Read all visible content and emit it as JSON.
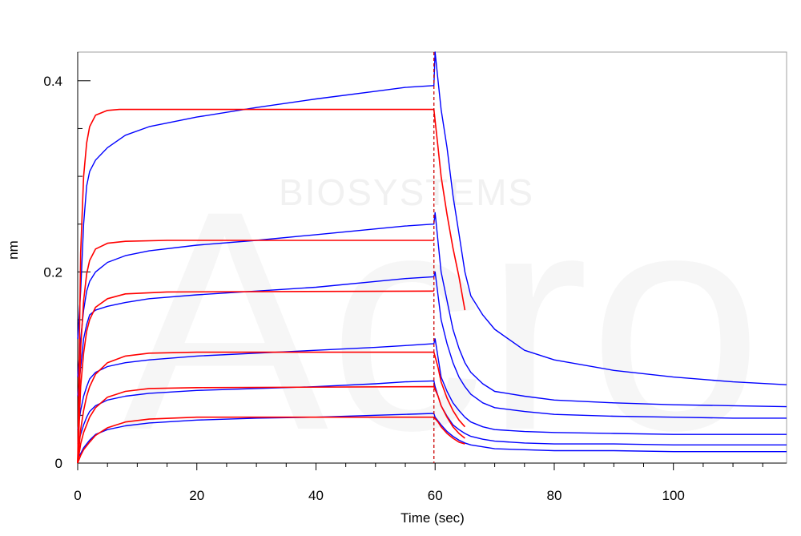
{
  "watermark": {
    "logo_text": "Acro",
    "text": "BIOSYSTEMS"
  },
  "chart_data": {
    "type": "line",
    "title": "",
    "xlabel": "Time (sec)",
    "ylabel": "nm",
    "xlim": [
      0,
      119
    ],
    "ylim": [
      0,
      0.43
    ],
    "x_ticks": [
      0,
      20,
      40,
      60,
      80,
      100
    ],
    "y_ticks": [
      0,
      0.2,
      0.4
    ],
    "x_tick_labels": [
      "0",
      "20",
      "40",
      "60",
      "80",
      "100"
    ],
    "y_tick_labels": [
      "0",
      "0.2",
      "0.4"
    ],
    "grid": false,
    "legend": "none",
    "dissociation_start": 59.8,
    "colors": {
      "measured": "#0000ff",
      "fit": "#ff0000",
      "marker_line": "#cc0000"
    },
    "measured_series": [
      {
        "points": [
          [
            0,
            0.13
          ],
          [
            0.5,
            0.18
          ],
          [
            1,
            0.25
          ],
          [
            1.5,
            0.29
          ],
          [
            2,
            0.305
          ],
          [
            3,
            0.317
          ],
          [
            5,
            0.33
          ],
          [
            8,
            0.343
          ],
          [
            12,
            0.352
          ],
          [
            20,
            0.362
          ],
          [
            30,
            0.372
          ],
          [
            40,
            0.381
          ],
          [
            50,
            0.389
          ],
          [
            55,
            0.393
          ],
          [
            59.8,
            0.395
          ],
          [
            60,
            0.43
          ],
          [
            60.5,
            0.4
          ],
          [
            61,
            0.37
          ],
          [
            62,
            0.33
          ],
          [
            63,
            0.28
          ],
          [
            64,
            0.24
          ],
          [
            65,
            0.2
          ],
          [
            66,
            0.175
          ],
          [
            68,
            0.155
          ],
          [
            70,
            0.14
          ],
          [
            75,
            0.118
          ],
          [
            80,
            0.108
          ],
          [
            90,
            0.097
          ],
          [
            100,
            0.09
          ],
          [
            110,
            0.085
          ],
          [
            119,
            0.082
          ]
        ]
      },
      {
        "points": [
          [
            0,
            0.09
          ],
          [
            0.5,
            0.13
          ],
          [
            1,
            0.16
          ],
          [
            1.5,
            0.18
          ],
          [
            2,
            0.19
          ],
          [
            3,
            0.2
          ],
          [
            5,
            0.21
          ],
          [
            8,
            0.217
          ],
          [
            12,
            0.222
          ],
          [
            20,
            0.228
          ],
          [
            30,
            0.233
          ],
          [
            40,
            0.239
          ],
          [
            50,
            0.245
          ],
          [
            55,
            0.248
          ],
          [
            59.8,
            0.25
          ],
          [
            60,
            0.262
          ],
          [
            61,
            0.2
          ],
          [
            62,
            0.17
          ],
          [
            63,
            0.14
          ],
          [
            64,
            0.12
          ],
          [
            65,
            0.105
          ],
          [
            66,
            0.095
          ],
          [
            68,
            0.083
          ],
          [
            70,
            0.075
          ],
          [
            75,
            0.07
          ],
          [
            80,
            0.066
          ],
          [
            90,
            0.063
          ],
          [
            100,
            0.061
          ],
          [
            110,
            0.06
          ],
          [
            119,
            0.059
          ]
        ]
      },
      {
        "points": [
          [
            0,
            0.07
          ],
          [
            0.5,
            0.1
          ],
          [
            1,
            0.13
          ],
          [
            1.5,
            0.145
          ],
          [
            2,
            0.155
          ],
          [
            3,
            0.16
          ],
          [
            5,
            0.164
          ],
          [
            8,
            0.168
          ],
          [
            12,
            0.172
          ],
          [
            20,
            0.176
          ],
          [
            30,
            0.18
          ],
          [
            40,
            0.184
          ],
          [
            50,
            0.19
          ],
          [
            55,
            0.193
          ],
          [
            59.8,
            0.195
          ],
          [
            60,
            0.2
          ],
          [
            61,
            0.15
          ],
          [
            62,
            0.125
          ],
          [
            63,
            0.105
          ],
          [
            64,
            0.09
          ],
          [
            65,
            0.08
          ],
          [
            66,
            0.072
          ],
          [
            68,
            0.063
          ],
          [
            70,
            0.058
          ],
          [
            75,
            0.054
          ],
          [
            80,
            0.051
          ],
          [
            90,
            0.049
          ],
          [
            100,
            0.048
          ],
          [
            110,
            0.047
          ],
          [
            119,
            0.047
          ]
        ]
      },
      {
        "points": [
          [
            0,
            0.035
          ],
          [
            0.5,
            0.055
          ],
          [
            1,
            0.07
          ],
          [
            1.5,
            0.08
          ],
          [
            2,
            0.088
          ],
          [
            3,
            0.095
          ],
          [
            5,
            0.101
          ],
          [
            8,
            0.105
          ],
          [
            12,
            0.108
          ],
          [
            20,
            0.112
          ],
          [
            30,
            0.115
          ],
          [
            40,
            0.118
          ],
          [
            50,
            0.121
          ],
          [
            55,
            0.123
          ],
          [
            59.8,
            0.125
          ],
          [
            60,
            0.13
          ],
          [
            61,
            0.09
          ],
          [
            62,
            0.075
          ],
          [
            63,
            0.063
          ],
          [
            64,
            0.055
          ],
          [
            65,
            0.048
          ],
          [
            66,
            0.043
          ],
          [
            68,
            0.038
          ],
          [
            70,
            0.035
          ],
          [
            75,
            0.033
          ],
          [
            80,
            0.032
          ],
          [
            90,
            0.031
          ],
          [
            100,
            0.03
          ],
          [
            110,
            0.03
          ],
          [
            119,
            0.03
          ]
        ]
      },
      {
        "points": [
          [
            0,
            0.02
          ],
          [
            0.5,
            0.03
          ],
          [
            1,
            0.04
          ],
          [
            1.5,
            0.048
          ],
          [
            2,
            0.054
          ],
          [
            3,
            0.06
          ],
          [
            5,
            0.066
          ],
          [
            8,
            0.07
          ],
          [
            12,
            0.073
          ],
          [
            20,
            0.076
          ],
          [
            30,
            0.078
          ],
          [
            40,
            0.08
          ],
          [
            50,
            0.083
          ],
          [
            55,
            0.085
          ],
          [
            59.8,
            0.086
          ],
          [
            60,
            0.08
          ],
          [
            61,
            0.06
          ],
          [
            62,
            0.049
          ],
          [
            63,
            0.04
          ],
          [
            64,
            0.035
          ],
          [
            65,
            0.031
          ],
          [
            66,
            0.028
          ],
          [
            68,
            0.025
          ],
          [
            70,
            0.023
          ],
          [
            75,
            0.021
          ],
          [
            80,
            0.02
          ],
          [
            90,
            0.02
          ],
          [
            100,
            0.019
          ],
          [
            110,
            0.019
          ],
          [
            119,
            0.019
          ]
        ]
      },
      {
        "points": [
          [
            0,
            0.005
          ],
          [
            0.5,
            0.01
          ],
          [
            1,
            0.016
          ],
          [
            1.5,
            0.02
          ],
          [
            2,
            0.024
          ],
          [
            3,
            0.03
          ],
          [
            5,
            0.035
          ],
          [
            8,
            0.039
          ],
          [
            12,
            0.042
          ],
          [
            20,
            0.045
          ],
          [
            30,
            0.047
          ],
          [
            40,
            0.048
          ],
          [
            50,
            0.05
          ],
          [
            55,
            0.051
          ],
          [
            59.8,
            0.052
          ],
          [
            60,
            0.048
          ],
          [
            61,
            0.04
          ],
          [
            62,
            0.033
          ],
          [
            63,
            0.028
          ],
          [
            64,
            0.024
          ],
          [
            65,
            0.021
          ],
          [
            66,
            0.019
          ],
          [
            68,
            0.017
          ],
          [
            70,
            0.015
          ],
          [
            75,
            0.014
          ],
          [
            80,
            0.013
          ],
          [
            90,
            0.013
          ],
          [
            100,
            0.012
          ],
          [
            110,
            0.012
          ],
          [
            119,
            0.012
          ]
        ]
      }
    ],
    "fit_series": [
      {
        "points": [
          [
            0,
            0.0
          ],
          [
            0.5,
            0.22
          ],
          [
            1,
            0.3
          ],
          [
            1.5,
            0.335
          ],
          [
            2,
            0.352
          ],
          [
            3,
            0.364
          ],
          [
            5,
            0.369
          ],
          [
            7,
            0.37
          ],
          [
            59.8,
            0.37
          ],
          [
            60.5,
            0.33
          ],
          [
            61,
            0.3
          ],
          [
            62,
            0.26
          ],
          [
            63,
            0.225
          ],
          [
            64,
            0.195
          ],
          [
            65,
            0.16
          ]
        ]
      },
      {
        "points": [
          [
            0,
            0.0
          ],
          [
            0.5,
            0.12
          ],
          [
            1,
            0.17
          ],
          [
            1.5,
            0.198
          ],
          [
            2,
            0.212
          ],
          [
            3,
            0.224
          ],
          [
            5,
            0.23
          ],
          [
            8,
            0.232
          ],
          [
            15,
            0.233
          ],
          [
            59.8,
            0.233
          ]
        ]
      },
      {
        "points": [
          [
            0,
            0.0
          ],
          [
            0.5,
            0.08
          ],
          [
            1,
            0.115
          ],
          [
            1.5,
            0.138
          ],
          [
            2,
            0.15
          ],
          [
            3,
            0.163
          ],
          [
            5,
            0.172
          ],
          [
            8,
            0.177
          ],
          [
            15,
            0.179
          ],
          [
            59.8,
            0.18
          ]
        ]
      },
      {
        "points": [
          [
            0,
            0.0
          ],
          [
            0.5,
            0.035
          ],
          [
            1,
            0.055
          ],
          [
            1.5,
            0.07
          ],
          [
            2,
            0.08
          ],
          [
            3,
            0.093
          ],
          [
            5,
            0.105
          ],
          [
            8,
            0.112
          ],
          [
            12,
            0.115
          ],
          [
            20,
            0.116
          ],
          [
            59.8,
            0.116
          ],
          [
            60.5,
            0.1
          ],
          [
            61,
            0.085
          ],
          [
            62,
            0.068
          ],
          [
            63,
            0.055
          ],
          [
            64,
            0.045
          ],
          [
            65,
            0.038
          ]
        ]
      },
      {
        "points": [
          [
            0,
            0.0
          ],
          [
            0.5,
            0.02
          ],
          [
            1,
            0.032
          ],
          [
            2,
            0.048
          ],
          [
            3,
            0.058
          ],
          [
            5,
            0.069
          ],
          [
            8,
            0.075
          ],
          [
            12,
            0.078
          ],
          [
            20,
            0.079
          ],
          [
            59.8,
            0.08
          ],
          [
            60.5,
            0.07
          ],
          [
            61,
            0.06
          ],
          [
            62,
            0.048
          ],
          [
            63,
            0.038
          ],
          [
            64,
            0.031
          ],
          [
            65,
            0.026
          ]
        ]
      },
      {
        "points": [
          [
            0,
            0.0
          ],
          [
            0.5,
            0.008
          ],
          [
            1,
            0.014
          ],
          [
            2,
            0.022
          ],
          [
            3,
            0.029
          ],
          [
            5,
            0.037
          ],
          [
            8,
            0.043
          ],
          [
            12,
            0.046
          ],
          [
            20,
            0.048
          ],
          [
            59.8,
            0.048
          ],
          [
            60.5,
            0.043
          ],
          [
            61,
            0.038
          ],
          [
            62,
            0.031
          ],
          [
            63,
            0.026
          ],
          [
            64,
            0.022
          ],
          [
            65,
            0.02
          ]
        ]
      }
    ]
  }
}
